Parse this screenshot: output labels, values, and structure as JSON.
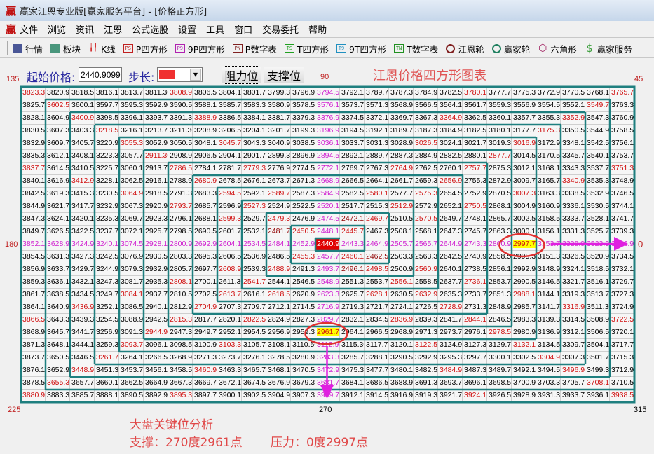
{
  "window": {
    "title": "赢家江恩专业版[赢家服务平台] - [价格正方形]",
    "logo": "赢"
  },
  "menu": [
    "文件",
    "浏览",
    "资讯",
    "江恩",
    "公式选股",
    "设置",
    "工具",
    "窗口",
    "交易委托",
    "帮助"
  ],
  "toolbar": [
    {
      "label": "行情",
      "icon": "table-icon",
      "badge": "",
      "color": "#203080"
    },
    {
      "label": "板块",
      "icon": "blocks-icon",
      "badge": "",
      "color": "#208060"
    },
    {
      "label": "K线",
      "icon": "candlestick-icon",
      "badge": "",
      "color": "#d02020"
    },
    {
      "label": "P四方形",
      "icon": "ps-icon",
      "badge": "PS",
      "color": "#c02020"
    },
    {
      "label": "9P四方形",
      "icon": "p9-icon",
      "badge": "P9",
      "color": "#b020b0"
    },
    {
      "label": "P数字表",
      "icon": "pn-icon",
      "badge": "PN",
      "color": "#802020"
    },
    {
      "label": "T四方形",
      "icon": "ts-icon",
      "badge": "TS",
      "color": "#20a020"
    },
    {
      "label": "9T四方形",
      "icon": "t9-icon",
      "badge": "T9",
      "color": "#2090c0"
    },
    {
      "label": "T数字表",
      "icon": "tn-icon",
      "badge": "TN",
      "color": "#209020"
    },
    {
      "label": "江恩轮",
      "icon": "gann-wheel-icon",
      "badge": "",
      "color": "#802020"
    },
    {
      "label": "赢家轮",
      "icon": "winner-wheel-icon",
      "badge": "",
      "color": "#208060"
    },
    {
      "label": "六角形",
      "icon": "hexagon-icon",
      "badge": "",
      "color": "#a02060"
    },
    {
      "label": "赢家服务",
      "icon": "dollar-icon",
      "badge": "",
      "color": "#40a040"
    }
  ],
  "controls": {
    "start_price_label": "起始价格:",
    "start_price_value": "2440.9099",
    "step_label": "步长:",
    "step_color": "#f03030",
    "resistance_button": "阻力位",
    "support_button": "支撑位"
  },
  "chart_title": "江恩价格四方形图表",
  "degrees": {
    "top_left": "135",
    "top": "90",
    "top_right": "45",
    "left": "180",
    "right": "0",
    "bottom_left": "225",
    "bottom": "270",
    "bottom_right": "315"
  },
  "grid": {
    "size": 25,
    "center_price": 2440.9,
    "highlighted": {
      "center": "2440.90",
      "resistance": "2997.70",
      "support": "2961.70"
    },
    "colors": {
      "k": "#000000",
      "r": "#d01010",
      "d": "#900000",
      "p": "#d020d0",
      "center_bg": "#e00000",
      "center_text": "#ffffff",
      "yellow_bg": "#ffff00",
      "yellow_text": "#d01010",
      "spiral_line": "#1f7f7f",
      "arrow": "#e020e0",
      "circle": "#e03030"
    },
    "color_rows": [
      "r.....r.....p.....r.....r",
      ".r..........p..........r.",
      "..r....r....p....r....r..",
      "...r........p........r...",
      "....r...r...p...r...r....",
      ".....r......p......r.....",
      "r.....r..r..p..r..r.....r",
      "..r....r....p....r....r..",
      "....r...r.r.p.r.r...r....",
      "......r..r..p..r..r......",
      "........r.r.pdr.r........",
      "..........drpr...........",
      "ppppppppppppCpppppppYpppp",
      "...........rprd..........",
      "........r.r.pdr.r........",
      "......r..r..p..r..r......",
      "....r...r.r.p.r.r...r....",
      "..r....r....p....r....r..",
      "r.....r..r..p..r..r.....r",
      ".....r......Y......r.....",
      "....r...r...p...r...r....",
      "...r........p........r...",
      "..r....r....p....r....r..",
      ".r..........p..........r.",
      "r.....r.....p.....r.....r"
    ],
    "cells_in_spiral_order": [
      2440.9,
      2443.3,
      2445.7,
      2448.1,
      2450.5,
      2452.9,
      2455.3,
      2457.7,
      2460.1,
      2462.5,
      2464.9,
      2467.3,
      2469.7,
      2472.1,
      2474.5,
      2476.9,
      2479.3,
      2481.7,
      2484.1,
      2486.5,
      2488.9,
      2491.3,
      2493.7,
      2496.1,
      2498.5,
      2500.9,
      2503.3,
      2505.7,
      2508.1,
      2510.5,
      2512.9,
      2515.3,
      2517.7,
      2520.1,
      2522.5,
      2524.9,
      2527.3,
      2529.7,
      2532.1,
      2534.5,
      2536.9,
      2539.3,
      2541.7,
      2544.1,
      2546.5,
      2548.9,
      2551.3,
      2553.7,
      2556.1,
      2558.5,
      2560.9,
      2563.3,
      2565.7,
      2568.1,
      2570.5,
      2572.9,
      2575.3,
      2577.7,
      2580.1,
      2582.5,
      2584.9,
      2587.3,
      2589.7,
      2592.1,
      2594.5,
      2596.9,
      2599.3,
      2601.7,
      2604.1,
      2606.5,
      2608.9,
      2611.3,
      2613.7,
      2616.1,
      2618.5,
      2620.9,
      2623.3,
      2625.7,
      2628.1,
      2630.5,
      2632.9,
      2635.3,
      2637.7,
      2640.1,
      2642.5,
      2644.9,
      2647.3,
      2649.7,
      2652.1,
      2654.5,
      2656.9,
      2659.3,
      2661.7,
      2664.1,
      2666.5,
      2668.9,
      2671.3,
      2673.7,
      2676.1,
      2678.5,
      2680.9,
      2683.3,
      2685.7,
      2688.1,
      2690.5,
      2692.9,
      2695.3,
      2697.7,
      2700.1,
      2702.5,
      2704.9,
      2707.3,
      2709.7,
      2712.1,
      2714.5,
      2716.9,
      2719.3,
      2721.7,
      2724.1,
      2726.5,
      2728.9,
      2731.3,
      2733.7,
      2736.1,
      2738.5,
      2740.9,
      2743.3,
      2745.7,
      2748.1,
      2750.5,
      2752.9,
      2755.3,
      2757.7,
      2760.1,
      2762.5,
      2764.9,
      2767.3,
      2769.7,
      2772.1,
      2774.5,
      2776.9,
      2779.3,
      2781.7,
      2784.1,
      2786.5,
      2788.9,
      2791.3,
      2793.7,
      2796.1,
      2798.5,
      2800.9,
      2803.3,
      2805.7,
      2808.1,
      2810.5,
      2812.9,
      2815.3,
      2817.7,
      2820.1,
      2822.5,
      2824.9,
      2827.3,
      2829.7,
      2832.1,
      2834.5,
      2836.9,
      2839.3,
      2841.7,
      2844.1,
      2846.5,
      2848.9,
      2851.3,
      2853.7,
      2856.1,
      2858.5,
      2860.9,
      2863.3,
      2865.7,
      2868.1,
      2870.5,
      2872.9,
      2875.3,
      2877.7,
      2880.1,
      2882.5,
      2884.9,
      2887.3,
      2889.7,
      2892.1,
      2894.5,
      2896.9,
      2899.3,
      2901.7,
      2904.1,
      2906.5,
      2908.9,
      2911.3,
      2913.7,
      2916.1,
      2918.5,
      2920.9,
      2923.3,
      2925.7,
      2928.1,
      2930.5,
      2932.9,
      2935.3,
      2937.7,
      2940.1,
      2942.5,
      2944.9,
      2947.3,
      2949.7,
      2952.1,
      2954.5,
      2956.9,
      2959.3,
      2961.7,
      2964.1,
      2966.5,
      2968.9,
      2971.3,
      2973.7,
      2976.1,
      2978.5,
      2980.9,
      2983.3,
      2985.7,
      2988.1,
      2990.5,
      2992.9,
      2995.3,
      2997.7,
      3000.1,
      3002.5,
      3004.9,
      3007.3,
      3009.7,
      3012.1,
      3014.5,
      3016.9,
      3019.3,
      3021.7,
      3024.1,
      3026.5,
      3028.9,
      3031.3,
      3033.7,
      3036.1,
      3038.5,
      3040.9,
      3043.3,
      3045.7,
      3048.1,
      3050.5,
      3052.9,
      3055.3,
      3057.7,
      3060.1,
      3062.5,
      3064.9,
      3067.3,
      3069.7,
      3072.1,
      3074.5,
      3076.9,
      3079.3,
      3081.7,
      3084.1,
      3086.5,
      3088.9,
      3091.3,
      3093.7,
      3096.1,
      3098.5,
      3100.9,
      3103.3,
      3105.7,
      3108.1,
      3110.5,
      3112.9,
      3115.3,
      3117.7,
      3120.1,
      3122.5,
      3124.9,
      3127.3,
      3129.7,
      3132.1,
      3134.5,
      3136.9,
      3139.3,
      3141.7,
      3144.1,
      3146.5,
      3148.9,
      3151.3,
      3153.7,
      3156.1,
      3158.5,
      3160.9,
      3163.3,
      3165.7,
      3168.1,
      3170.5,
      3172.9,
      3175.3,
      3177.7,
      3180.1,
      3182.5,
      3184.9,
      3187.3,
      3189.7,
      3192.1,
      3194.5,
      3196.9,
      3199.3,
      3201.7,
      3204.1,
      3206.5,
      3208.9,
      3211.3,
      3213.7,
      3216.1,
      3218.5,
      3220.9,
      3223.3,
      3225.7,
      3228.1,
      3230.5,
      3232.9,
      3235.3,
      3237.7,
      3240.1,
      3242.5,
      3244.9,
      3247.3,
      3249.7,
      3252.1,
      3254.5,
      3256.9,
      3259.3,
      3261.7,
      3264.1,
      3266.5,
      3268.9,
      3271.3,
      3273.7,
      3276.1,
      3278.5,
      3280.9,
      3283.3,
      3285.7,
      3288.1,
      3290.5,
      3292.9,
      3295.3,
      3297.7,
      3300.1,
      3302.5,
      3304.9,
      3307.3,
      3309.7,
      3312.1,
      3314.5,
      3316.9,
      3319.3,
      3321.7,
      3324.1,
      3326.5,
      3328.9,
      3331.3,
      3333.7,
      3336.1,
      3338.5,
      3340.9,
      3343.3,
      3345.7,
      3348.1,
      3350.5,
      3352.9,
      3355.3,
      3357.7,
      3360.1,
      3362.5,
      3364.9,
      3367.3,
      3369.7,
      3372.1,
      3374.5,
      3376.9,
      3379.3,
      3381.7,
      3384.1,
      3386.5,
      3388.9,
      3391.3,
      3393.7,
      3396.1,
      3398.5,
      3400.9,
      3403.3,
      3405.7,
      3408.1,
      3410.5,
      3412.9,
      3415.3,
      3417.7,
      3420.1,
      3422.5,
      3424.9,
      3427.3,
      3429.7,
      3432.1,
      3434.5,
      3436.9,
      3439.3,
      3441.7,
      3444.1,
      3446.5,
      3448.9,
      3451.3,
      3453.7,
      3456.1,
      3458.5,
      3460.9,
      3463.3,
      3465.7,
      3468.1,
      3470.5,
      3472.9,
      3475.3,
      3477.7,
      3480.1,
      3482.5,
      3484.9,
      3487.3,
      3489.7,
      3492.1,
      3494.5,
      3496.9,
      3499.3,
      3501.7,
      3504.1,
      3506.5,
      3508.9,
      3511.3,
      3513.7,
      3516.1,
      3518.5,
      3520.9,
      3523.3,
      3525.7,
      3528.1,
      3530.5,
      3532.9,
      3535.3,
      3537.7,
      3540.1,
      3542.5,
      3544.9,
      3547.3,
      3549.7,
      3552.1,
      3554.5,
      3556.9,
      3559.3,
      3561.7,
      3564.1,
      3566.5,
      3568.9,
      3571.3,
      3573.7,
      3576.1,
      3578.5,
      3580.9,
      3583.3,
      3585.7,
      3588.1,
      3590.5,
      3592.9,
      3595.3,
      3597.7,
      3600.1,
      3602.5,
      3604.9,
      3607.3,
      3609.7,
      3612.1,
      3614.5,
      3616.9,
      3619.3,
      3621.7,
      3624.1,
      3626.5,
      3628.9,
      3631.3,
      3633.7,
      3636.1,
      3638.5,
      3640.9,
      3643.3,
      3645.7,
      3648.1,
      3650.5,
      3652.9,
      3655.3,
      3657.7,
      3660.1,
      3662.5,
      3664.9,
      3667.3,
      3669.7,
      3672.1,
      3674.5,
      3676.9,
      3679.3,
      3681.7,
      3684.1,
      3686.5,
      3688.9,
      3691.3,
      3693.7,
      3696.1,
      3698.5,
      3700.9,
      3703.3,
      3705.7,
      3708.1,
      3710.5,
      3712.9,
      3715.3,
      3717.7,
      3720.1,
      3722.5,
      3724.9,
      3727.3,
      3729.7,
      3732.1,
      3734.5,
      3736.9,
      3739.3,
      3741.7,
      3744.1,
      3746.5,
      3748.9,
      3751.3,
      3753.7,
      3756.1,
      3758.5,
      3760.9,
      3763.3,
      3765.7,
      3768.1,
      3770.5,
      3772.9,
      3775.3,
      3777.7,
      3780.1,
      3782.5,
      3784.9,
      3787.3,
      3789.7,
      3792.1,
      3794.5,
      3796.9,
      3799.3,
      3801.7,
      3804.1,
      3806.5,
      3808.9,
      3811.3,
      3813.7,
      3816.1,
      3818.5,
      3820.9,
      3823.3,
      3825.7,
      3828.1,
      3830.5,
      3832.9,
      3835.3,
      3837.7,
      3840.1,
      3842.5,
      3844.9,
      3847.3,
      3849.7,
      3852.1,
      3854.5,
      3856.9,
      3859.3,
      3861.7,
      3864.1,
      3866.5,
      3868.9,
      3871.3,
      3873.7,
      3876.1,
      3878.5,
      3880.9,
      3883.3,
      3885.7,
      3888.1,
      3890.5,
      3892.9,
      3895.3,
      3897.7,
      3900.1,
      3902.5,
      3904.9,
      3907.3,
      3909.7,
      3912.1,
      3914.5,
      3916.9,
      3919.3,
      3921.7,
      3924.1,
      3926.5,
      3928.9,
      3931.3,
      3933.7,
      3936.1,
      3938.5
    ]
  },
  "analysis": {
    "heading": "大盘关键位分析",
    "support": "支撑：270度2961点",
    "resistance": "压力：0度2997点"
  }
}
